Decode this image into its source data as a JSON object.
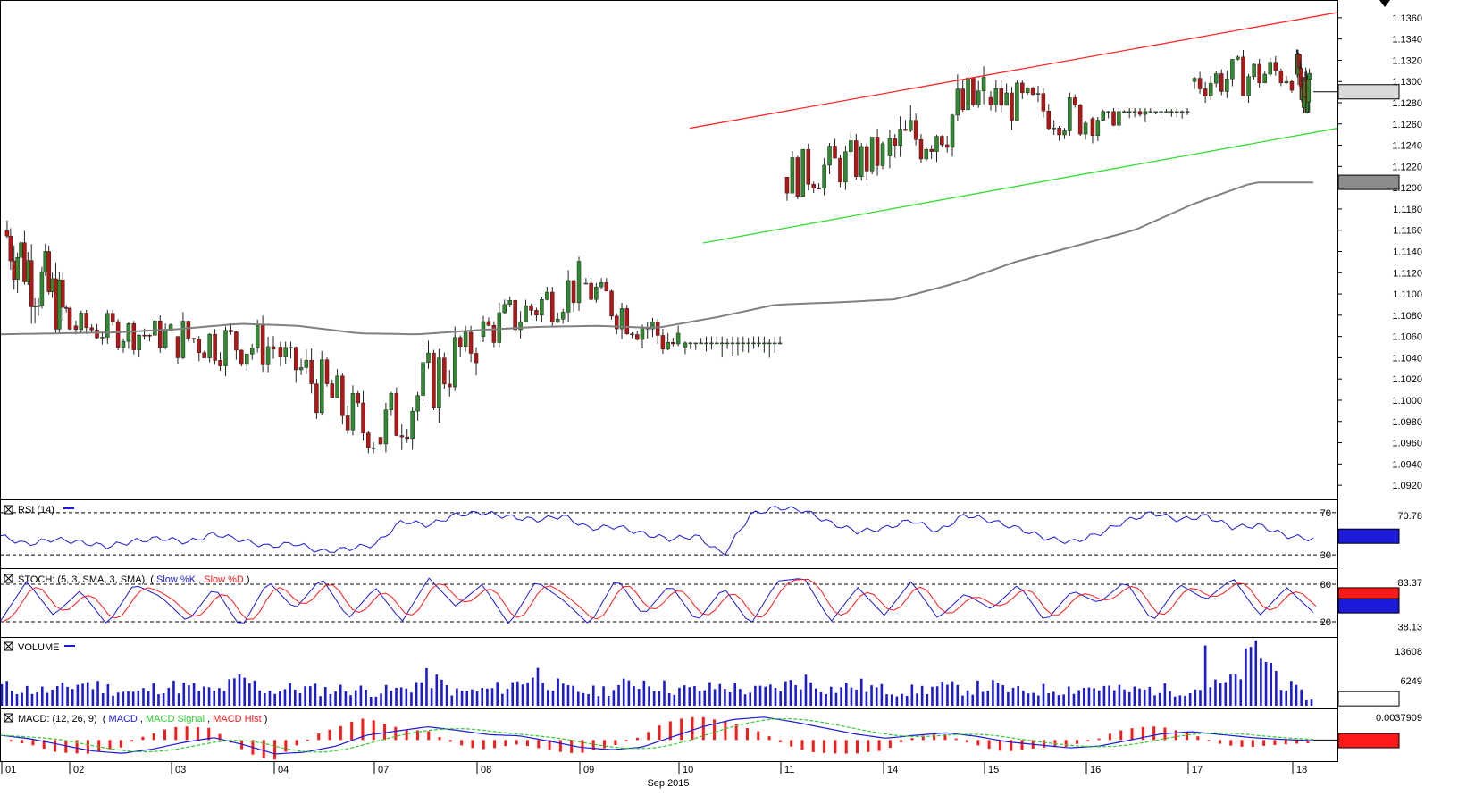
{
  "colors": {
    "background": "#ffffff",
    "axis": "#000000",
    "candle_up": "#2e8b2e",
    "candle_down": "#b81414",
    "sma": "#808080",
    "resistance": "#ff2a2a",
    "support": "#33dd33",
    "rsi_line": "#1a1ad8",
    "stoch_k": "#1a1ad8",
    "stoch_d": "#ff1a1a",
    "volume": "#1a1ad8",
    "macd": "#1a1ad8",
    "macd_signal": "#33cc33",
    "macd_hist": "#ff1a1a",
    "price_tag_bg": "#d9d9d9",
    "sma_tag_bg": "#8c8c8c",
    "indicator_tag_bg": "#1a1ad8",
    "macd_tag_bg": "#ff1a1a"
  },
  "icons": {
    "panel_toggle": "boxed-x-icon",
    "corner_marker": "triangle-down-icon"
  },
  "chart_data": [
    {
      "type": "candlestick",
      "title": "",
      "x": [
        "01",
        "02",
        "03",
        "04",
        "07",
        "08",
        "09",
        "10",
        "11",
        "14",
        "15",
        "16",
        "17",
        "18"
      ],
      "x_group_label": "Sep 2015",
      "ylim": [
        1.091,
        1.137
      ],
      "y_ticks": [
        "1.0920",
        "1.0940",
        "1.0960",
        "1.0980",
        "1.1000",
        "1.1020",
        "1.1040",
        "1.1060",
        "1.1080",
        "1.1100",
        "1.1120",
        "1.1140",
        "1.1160",
        "1.1180",
        "1.1200",
        "1.1220",
        "1.1240",
        "1.1260",
        "1.1280",
        "1.1300",
        "1.1320",
        "1.1340",
        "1.1360"
      ],
      "ohlc_daily_approx": [
        {
          "day": "01",
          "open": 1.116,
          "high": 1.1198,
          "low": 1.106,
          "close": 1.107
        },
        {
          "day": "02",
          "open": 1.107,
          "high": 1.1085,
          "low": 1.1025,
          "close": 1.106
        },
        {
          "day": "03",
          "open": 1.106,
          "high": 1.11,
          "low": 1.1015,
          "close": 1.105
        },
        {
          "day": "04",
          "open": 1.105,
          "high": 1.1055,
          "low": 1.095,
          "close": 1.0965
        },
        {
          "day": "07",
          "open": 1.0965,
          "high": 1.107,
          "low": 1.095,
          "close": 1.106
        },
        {
          "day": "08",
          "open": 1.106,
          "high": 1.1135,
          "low": 1.105,
          "close": 1.111
        },
        {
          "day": "09",
          "open": 1.111,
          "high": 1.1115,
          "low": 1.103,
          "close": 1.105
        },
        {
          "day": "10",
          "open": 1.105,
          "high": 1.106,
          "low": 1.0938,
          "close": 1.121
        },
        {
          "day": "11",
          "open": 1.121,
          "high": 1.1265,
          "low": 1.1185,
          "close": 1.123
        },
        {
          "day": "14",
          "open": 1.123,
          "high": 1.1315,
          "low": 1.1195,
          "close": 1.1285
        },
        {
          "day": "15",
          "open": 1.1285,
          "high": 1.131,
          "low": 1.1235,
          "close": 1.1265
        },
        {
          "day": "16",
          "open": 1.1265,
          "high": 1.1275,
          "low": 1.121,
          "close": 1.13
        },
        {
          "day": "17",
          "open": 1.13,
          "high": 1.135,
          "low": 1.128,
          "close": 1.131
        },
        {
          "day": "18",
          "open": 1.131,
          "high": 1.133,
          "low": 1.1245,
          "close": 1.129
        }
      ],
      "sma_approx": [
        1.1062,
        1.1063,
        1.1064,
        1.1067,
        1.1072,
        1.107,
        1.1063,
        1.1062,
        1.1066,
        1.1069,
        1.107,
        1.1068,
        1.1078,
        1.109,
        1.1092,
        1.1095,
        1.111,
        1.113,
        1.1145,
        1.116,
        1.1185,
        1.1205,
        1.1205
      ],
      "channel": {
        "resistance": {
          "from": [
            "10",
            1.1256
          ],
          "to": [
            "18+",
            1.1365
          ]
        },
        "support": {
          "from": [
            "10",
            1.1148
          ],
          "to": [
            "18+",
            1.1256
          ]
        }
      },
      "last_price": "1.12903",
      "sma_last": "1.12051"
    },
    {
      "type": "line",
      "name": "RSI (14)",
      "levels": [
        "70",
        "30"
      ],
      "axis_top_label": "70.78",
      "values_approx": [
        48,
        40,
        45,
        42,
        38,
        43,
        46,
        42,
        50,
        44,
        38,
        41,
        33,
        36,
        40,
        62,
        58,
        68,
        70,
        66,
        63,
        67,
        55,
        57,
        50,
        45,
        48,
        30,
        68,
        75,
        72,
        60,
        52,
        55,
        63,
        52,
        68,
        62,
        55,
        46,
        42,
        50,
        62,
        70,
        63,
        67,
        56,
        58,
        48,
        45
      ],
      "last": "47.70523"
    },
    {
      "type": "line",
      "name": "STOCH (5, 3, SMA, 3, SMA)",
      "series_names": [
        "Slow %K",
        "Slow %D"
      ],
      "levels": [
        "80",
        "20"
      ],
      "axis_labels": [
        "83.37",
        "38.13"
      ],
      "k_values_approx": [
        20,
        85,
        30,
        70,
        15,
        80,
        60,
        20,
        75,
        10,
        85,
        40,
        90,
        25,
        75,
        20,
        90,
        45,
        80,
        15,
        85,
        55,
        15,
        90,
        30,
        80,
        20,
        75,
        15,
        85,
        90,
        20,
        75,
        30,
        85,
        25,
        65,
        40,
        80,
        20,
        70,
        50,
        85,
        20,
        80,
        55,
        90,
        30,
        75,
        35
      ],
      "last_k": "51.25642",
      "last_d": "67.24552"
    },
    {
      "type": "bar",
      "name": "VOLUME",
      "axis_labels": [
        "13608",
        "6249"
      ],
      "values_approx": [
        5000,
        4200,
        3800,
        6100,
        4500,
        3300,
        5200,
        4800,
        3600,
        6800,
        3900,
        4600,
        4100,
        4400,
        3700,
        4200,
        7300,
        3500,
        4000,
        5100,
        8600,
        4300,
        3600,
        4700,
        6600,
        4500,
        4100,
        5200,
        3800,
        4600,
        6900,
        4300,
        5400,
        4100,
        3900,
        4800,
        4400,
        5100,
        3700,
        4200,
        4500,
        4900,
        3800,
        4300,
        4100,
        4600,
        6000,
        15000,
        5600,
        1519
      ],
      "last": "1519.23"
    },
    {
      "type": "line",
      "name": "MACD: (12, 26, 9)",
      "series_names": [
        "MACD",
        "MACD Signal",
        "MACD Hist"
      ],
      "axis_top_label": "0.0037909",
      "macd_values_approx": [
        0.0008,
        0.0002,
        -0.0008,
        -0.0018,
        -0.0022,
        -0.0015,
        -0.0004,
        0.0004,
        -0.0008,
        -0.0023,
        -0.002,
        -0.001,
        0.0008,
        0.0015,
        0.0022,
        0.0016,
        0.0009,
        0.0007,
        -0.0002,
        -0.0012,
        -0.0016,
        -0.0012,
        0.0005,
        0.0022,
        0.0034,
        0.0038,
        0.003,
        0.002,
        0.001,
        0.0003,
        0.0008,
        0.0012,
        0.0006,
        -0.0003,
        -0.0008,
        -0.0013,
        -0.001,
        0.0,
        0.001,
        0.0014,
        0.0009,
        0.0004,
        0.0001,
        -0.0001
      ],
      "last": "-0.0000917"
    }
  ],
  "xaxis_days": [
    "01",
    "02",
    "03",
    "04",
    "07",
    "08",
    "09",
    "10",
    "11",
    "14",
    "15",
    "16",
    "17",
    "18"
  ],
  "xaxis_month": "Sep 2015",
  "panels": {
    "price": {
      "y_ticks": [
        "1.0920",
        "1.0940",
        "1.0960",
        "1.0980",
        "1.1000",
        "1.1020",
        "1.1040",
        "1.1060",
        "1.1080",
        "1.1100",
        "1.1120",
        "1.1140",
        "1.1160",
        "1.1180",
        "1.1200",
        "1.1220",
        "1.1240",
        "1.1260",
        "1.1280",
        "1.1300",
        "1.1320",
        "1.1340",
        "1.1360"
      ],
      "price_tag": "1.12903",
      "sma_tag": "1.12051"
    },
    "rsi": {
      "label_text": "RSI (14)",
      "level_top": "70",
      "level_bottom": "30",
      "axis_label": "70.78",
      "tag": "47.70523"
    },
    "stoch": {
      "label_prefix": "STOCH: (5, 3, SMA, 3, SMA)",
      "label_open": "(",
      "k_name": "Slow %K",
      "label_sep": ", ",
      "d_name": "Slow %D",
      "label_close": ")",
      "level_top": "80",
      "level_bottom": "20",
      "axis_top": "83.37",
      "axis_bottom": "38.13",
      "tag_d": "67.24552",
      "tag_k": "51.25642"
    },
    "volume": {
      "label_text": "VOLUME",
      "axis_top": "13608",
      "axis_mid": "6249",
      "tag": "1519.23"
    },
    "macd": {
      "label_prefix": "MACD: (12, 26, 9)",
      "label_open": "(",
      "macd_name": "MACD",
      "sep1": ", ",
      "signal_name": "MACD Signal",
      "sep2": ", ",
      "hist_name": "MACD Hist",
      "label_close": ")",
      "axis_top": "0.0037909",
      "tag": "-0.0000917"
    }
  }
}
